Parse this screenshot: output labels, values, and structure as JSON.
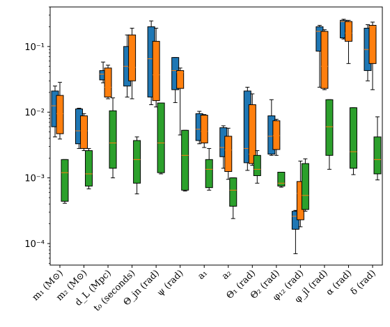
{
  "chart_data": {
    "type": "boxplot",
    "yscale": "log",
    "ylim": [
      4.7e-05,
      0.4
    ],
    "yticks": [
      {
        "value": 0.0001,
        "label": "10⁻⁴"
      },
      {
        "value": 0.001,
        "label": "10⁻³"
      },
      {
        "value": 0.01,
        "label": "10⁻²"
      },
      {
        "value": 0.1,
        "label": "10⁻¹"
      }
    ],
    "categories": [
      "m₁ (M⊙)",
      "m₂ (M⊙)",
      "d_L (Mpc)",
      "t₀ (seconds)",
      "Θ_jn (rad)",
      "ψ (rad)",
      "a₁",
      "a₂",
      "Θ₁ (rad)",
      "Θ₂ (rad)",
      "φ₁₂ (rad)",
      "φ_jl (rad)",
      "α (rad)",
      "δ (rad)"
    ],
    "colors": {
      "blue": "#1f77b4",
      "orange": "#ff7f0e",
      "green": "#2ca02c",
      "median": "#ff7f0e"
    },
    "series": [
      {
        "color": "#1f77b4",
        "boxes": [
          {
            "wlo": 0.0042,
            "q1": 0.006,
            "med": 0.0125,
            "q3": 0.021,
            "whi": 0.025
          },
          {
            "wlo": 0.0028,
            "q1": 0.0033,
            "med": 0.0052,
            "q3": 0.0112,
            "whi": 0.0115
          },
          {
            "wlo": 0.028,
            "q1": 0.031,
            "med": 0.038,
            "q3": 0.043,
            "whi": 0.058
          },
          {
            "wlo": 0.017,
            "q1": 0.025,
            "med": 0.05,
            "q3": 0.1,
            "whi": 0.15
          },
          {
            "wlo": 0.013,
            "q1": 0.017,
            "med": 0.065,
            "q3": 0.2,
            "whi": 0.245
          },
          {
            "wlo": 0.014,
            "q1": 0.022,
            "med": 0.043,
            "q3": 0.068,
            "whi": 0.068
          },
          {
            "wlo": 0.0033,
            "q1": 0.0037,
            "med": 0.0055,
            "q3": 0.0095,
            "whi": 0.0103
          },
          {
            "wlo": 0.0014,
            "q1": 0.0021,
            "med": 0.0029,
            "q3": 0.0058,
            "whi": 0.0062
          },
          {
            "wlo": 0.0013,
            "q1": 0.0017,
            "med": 0.0028,
            "q3": 0.021,
            "whi": 0.024
          },
          {
            "wlo": 0.0022,
            "q1": 0.0023,
            "med": 0.0043,
            "q3": 0.0088,
            "whi": 0.0155
          },
          {
            "wlo": 7e-05,
            "q1": 0.000165,
            "med": 0.00026,
            "q3": 0.00031,
            "whi": 0.00032
          },
          {
            "wlo": 0.024,
            "q1": 0.085,
            "med": 0.17,
            "q3": 0.2,
            "whi": 0.21
          },
          {
            "wlo": 0.13,
            "q1": 0.135,
            "med": 0.24,
            "q3": 0.25,
            "whi": 0.26
          },
          {
            "wlo": 0.03,
            "q1": 0.043,
            "med": 0.09,
            "q3": 0.19,
            "whi": 0.215
          }
        ]
      },
      {
        "color": "#ff7f0e",
        "boxes": [
          {
            "wlo": 0.0039,
            "q1": 0.0047,
            "med": 0.0095,
            "q3": 0.018,
            "whi": 0.0285
          },
          {
            "wlo": 0.0026,
            "q1": 0.0028,
            "med": 0.0052,
            "q3": 0.0088,
            "whi": 0.0095
          },
          {
            "wlo": 0.016,
            "q1": 0.017,
            "med": 0.024,
            "q3": 0.047,
            "whi": 0.052
          },
          {
            "wlo": 0.016,
            "q1": 0.03,
            "med": 0.048,
            "q3": 0.15,
            "whi": 0.19
          },
          {
            "wlo": 0.012,
            "q1": 0.015,
            "med": 0.037,
            "q3": 0.12,
            "whi": 0.19
          },
          {
            "wlo": 0.0045,
            "q1": 0.023,
            "med": 0.04,
            "q3": 0.043,
            "whi": 0.047
          },
          {
            "wlo": 0.0029,
            "q1": 0.0034,
            "med": 0.0051,
            "q3": 0.009,
            "whi": 0.0092
          },
          {
            "wlo": 0.00095,
            "q1": 0.00125,
            "med": 0.00265,
            "q3": 0.0043,
            "whi": 0.0057
          },
          {
            "wlo": 0.00155,
            "q1": 0.00165,
            "med": 0.0023,
            "q3": 0.013,
            "whi": 0.019
          },
          {
            "wlo": 0.0022,
            "q1": 0.0027,
            "med": 0.0044,
            "q3": 0.0074,
            "whi": 0.0078
          },
          {
            "wlo": 0.00018,
            "q1": 0.00023,
            "med": 0.00058,
            "q3": 0.00088,
            "whi": 0.0018
          },
          {
            "wlo": 0.022,
            "q1": 0.023,
            "med": 0.05,
            "q3": 0.17,
            "whi": 0.18
          },
          {
            "wlo": 0.055,
            "q1": 0.12,
            "med": 0.16,
            "q3": 0.24,
            "whi": 0.25
          },
          {
            "wlo": 0.022,
            "q1": 0.055,
            "med": 0.2,
            "q3": 0.21,
            "whi": 0.235
          }
        ]
      },
      {
        "color": "#2ca02c",
        "boxes": [
          {
            "wlo": 0.00041,
            "q1": 0.00044,
            "med": 0.0012,
            "q3": 0.0019,
            "whi": 0.0019
          },
          {
            "wlo": 0.00068,
            "q1": 0.00075,
            "med": 0.00115,
            "q3": 0.0026,
            "whi": 0.0028
          },
          {
            "wlo": 0.001,
            "q1": 0.0014,
            "med": 0.0034,
            "q3": 0.0105,
            "whi": 0.0165
          },
          {
            "wlo": 0.00057,
            "q1": 0.00083,
            "med": 0.0019,
            "q3": 0.0037,
            "whi": 0.0042
          },
          {
            "wlo": 0.00115,
            "q1": 0.0012,
            "med": 0.0034,
            "q3": 0.0138,
            "whi": 0.0138
          },
          {
            "wlo": 0.00063,
            "q1": 0.00065,
            "med": 0.0022,
            "q3": 0.0053,
            "whi": 0.0053
          },
          {
            "wlo": 0.00065,
            "q1": 0.00071,
            "med": 0.00135,
            "q3": 0.0019,
            "whi": 0.0028
          },
          {
            "wlo": 0.00024,
            "q1": 0.00037,
            "med": 0.00065,
            "q3": 0.001,
            "whi": 0.001
          },
          {
            "wlo": 0.00083,
            "q1": 0.00108,
            "med": 0.00135,
            "q3": 0.0022,
            "whi": 0.0026
          },
          {
            "wlo": 0.00072,
            "q1": 0.00075,
            "med": 0.00083,
            "q3": 0.00122,
            "whi": 0.00122
          },
          {
            "wlo": 0.00031,
            "q1": 0.00033,
            "med": 0.00054,
            "q3": 0.00165,
            "whi": 0.00195
          },
          {
            "wlo": 0.00135,
            "q1": 0.0022,
            "med": 0.006,
            "q3": 0.0155,
            "whi": 0.0155
          },
          {
            "wlo": 0.00112,
            "q1": 0.0014,
            "med": 0.0025,
            "q3": 0.0117,
            "whi": 0.0117
          },
          {
            "wlo": 0.00093,
            "q1": 0.00115,
            "med": 0.0019,
            "q3": 0.0042,
            "whi": 0.0085
          }
        ]
      }
    ]
  }
}
